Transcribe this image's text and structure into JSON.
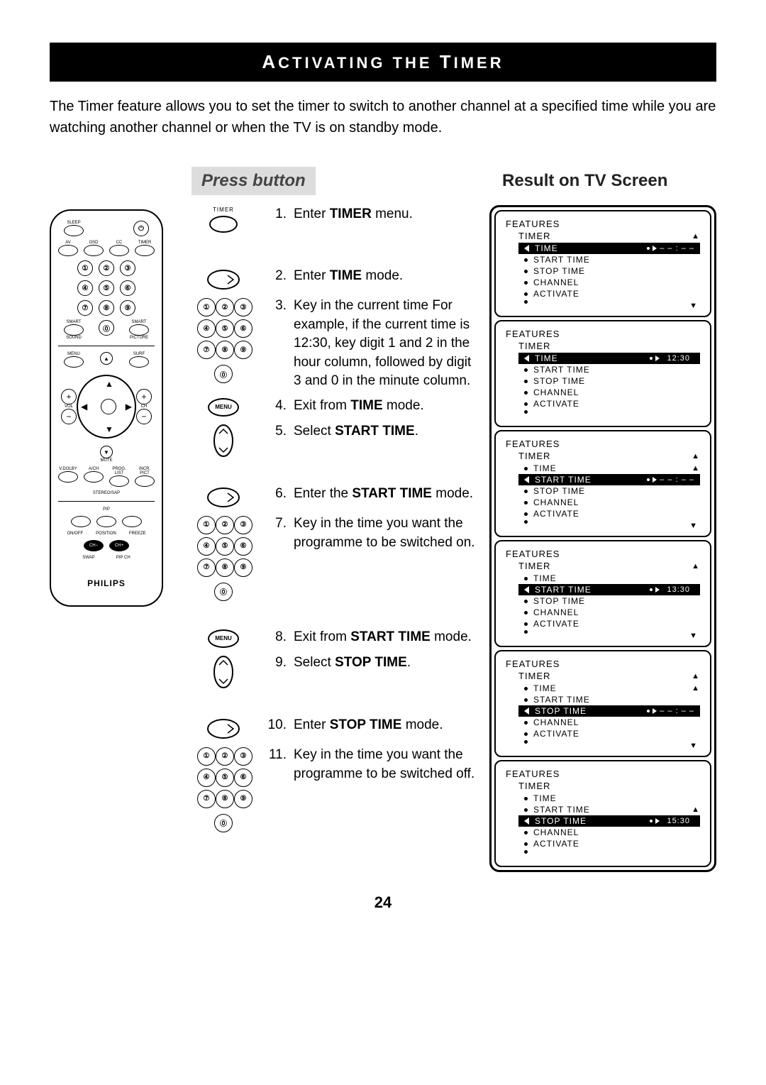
{
  "title": {
    "pre": "A",
    "mid1": "CTIVATING",
    "sp": " THE ",
    "pre2": "T",
    "mid2": "IMER"
  },
  "intro": "The Timer feature allows you to set the timer to switch to another channel at a specified time while you are watching another channel or when the TV is on standby mode.",
  "headers": {
    "press": "Press button",
    "result": "Result on TV Screen"
  },
  "remote": {
    "labels": {
      "sleep": "SLEEP",
      "av": "AV",
      "osd": "OSD",
      "cc": "CC",
      "timer": "TIMER",
      "smart": "SMART",
      "sound": "SOUND",
      "picture": "PICTURE",
      "menu": "MENU",
      "surf": "SURF",
      "vol": "VOL",
      "ch": "CH",
      "mute": "MUTE",
      "vdolby": "V.DOLBY",
      "ach": "A/CH",
      "proglist": "PROG. LIST",
      "incrpict": "INCR. PICT",
      "stereo": "STEREO/SAP",
      "pip": "PIP",
      "onoff": "ON/OFF",
      "position": "POSITION",
      "freeze": "FREEZE",
      "swap": "SWAP",
      "pipch": "PIP CH"
    },
    "brand": "PHILIPS"
  },
  "icons": {
    "timer_label": "TIMER",
    "menu_label": "MENU"
  },
  "digits": [
    "①",
    "②",
    "③",
    "④",
    "⑤",
    "⑥",
    "⑦",
    "⑧",
    "⑨",
    "⓪"
  ],
  "steps": [
    {
      "n": "1.",
      "text": "Enter <b>TIMER</b> menu.",
      "icon": "timer",
      "spacer": true
    },
    {
      "n": "2.",
      "text": "Enter <b>TIME</b> mode.",
      "icon": "right"
    },
    {
      "n": "3.",
      "text": "Key in the current time For example, if the current time is 12:30, key digit 1 and 2 in the hour column, followed by digit 3 and 0 in the minute column.",
      "icon": "digits"
    },
    {
      "n": "4.",
      "text": "Exit from <b>TIME</b> mode.",
      "icon": "menu"
    },
    {
      "n": "5.",
      "text": "Select <b>START TIME</b>.",
      "icon": "updown",
      "spacerAfter": true
    },
    {
      "n": "6.",
      "text": "Enter the <b>START TIME</b> mode.",
      "icon": "right"
    },
    {
      "n": "7.",
      "text": "Key in the time you want the programme to be switched on.",
      "icon": "digits",
      "spacerAfter": true
    },
    {
      "n": "8.",
      "text": "Exit from <b>START TIME</b> mode.",
      "icon": "menu"
    },
    {
      "n": "9.",
      "text": "Select <b>STOP TIME</b>.",
      "icon": "updown",
      "spacerAfter": true
    },
    {
      "n": "10.",
      "text": "Enter <b>STOP TIME</b> mode.",
      "icon": "right"
    },
    {
      "n": "11.",
      "text": "Key in the time you want the programme to be switched off.",
      "icon": "digits"
    }
  ],
  "menu_items": [
    "TIME",
    "START TIME",
    "STOP TIME",
    "CHANNEL",
    "ACTIVATE"
  ],
  "features_label": "FEATURES",
  "timer_label": "TIMER",
  "screens": [
    {
      "sel": 0,
      "val": "– – : – –",
      "valmode": "dashed",
      "showUp": true,
      "showDn": true
    },
    {
      "sel": 0,
      "val": "12:30",
      "valmode": "box",
      "tri": "right"
    },
    {
      "sel": 1,
      "val": "– – : – –",
      "valmode": "dashed",
      "showUp": true,
      "showDn": true,
      "extraTime": true
    },
    {
      "sel": 1,
      "val": "13:30",
      "valmode": "box",
      "tri": "right",
      "showUp": true,
      "showDn": true,
      "extraTime": true,
      "upOnStart": true
    },
    {
      "sel": 2,
      "val": "– – : – –",
      "valmode": "dashed",
      "showUp": true,
      "showDn": true,
      "extraTime": true,
      "extraStart": true
    },
    {
      "sel": 2,
      "val": "15:30",
      "valmode": "box",
      "tri": "right",
      "extraTime": true,
      "extraStart": true,
      "upOnStart": true
    }
  ],
  "page": "24"
}
